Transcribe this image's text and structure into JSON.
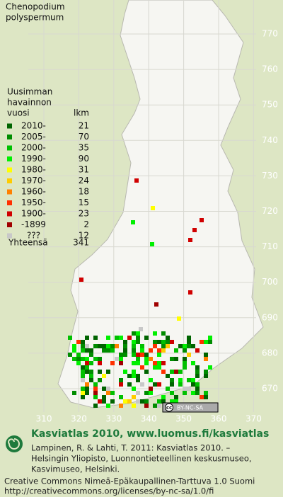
{
  "title": [
    "Chenopodium",
    "polyspermum"
  ],
  "legend": {
    "header": [
      "Uusimman",
      "havainnon",
      "vuosi"
    ],
    "count_header": "lkm",
    "rows": [
      {
        "label": "2010-",
        "count": 21,
        "color": "#006400"
      },
      {
        "label": "2005-",
        "count": 70,
        "color": "#008c00"
      },
      {
        "label": "2000-",
        "count": 35,
        "color": "#00c000"
      },
      {
        "label": "1990-",
        "count": 90,
        "color": "#00f000"
      },
      {
        "label": "1980-",
        "count": 31,
        "color": "#ffff00"
      },
      {
        "label": "1970-",
        "count": 24,
        "color": "#ffcc00"
      },
      {
        "label": "1960-",
        "count": 18,
        "color": "#ff8000"
      },
      {
        "label": "1950-",
        "count": 15,
        "color": "#ff3000"
      },
      {
        "label": "1900-",
        "count": 23,
        "color": "#d00000"
      },
      {
        "label": "-1899",
        "count": 2,
        "color": "#a00000"
      },
      {
        "label": "???",
        "count": 12,
        "color": "#c8c8c8"
      }
    ],
    "total_label": "Yhteensä",
    "total": 341
  },
  "map": {
    "northing": [
      770,
      760,
      750,
      740,
      730,
      720,
      710,
      700,
      690,
      680,
      670
    ],
    "easting": [
      310,
      320,
      330,
      340,
      350,
      360,
      370
    ],
    "license_badge": [
      "cc",
      "BY-NC-SA"
    ]
  },
  "footer": {
    "heading": "Kasviatlas 2010, www.luomus.fi/kasviatlas",
    "citation": [
      "Lampinen, R. & Lahti, T. 2011: Kasviatlas 2010. –",
      "Helsingin Yliopisto, Luonnontieteellinen keskusmuseo,",
      "Kasvimuseo, Helsinki."
    ],
    "license": [
      "Creative Commons Nimeä-Epäkaupallinen-Tarttuva 1.0 Suomi",
      "http://creativecommons.org/licenses/by-nc-sa/1.0/fi"
    ]
  }
}
